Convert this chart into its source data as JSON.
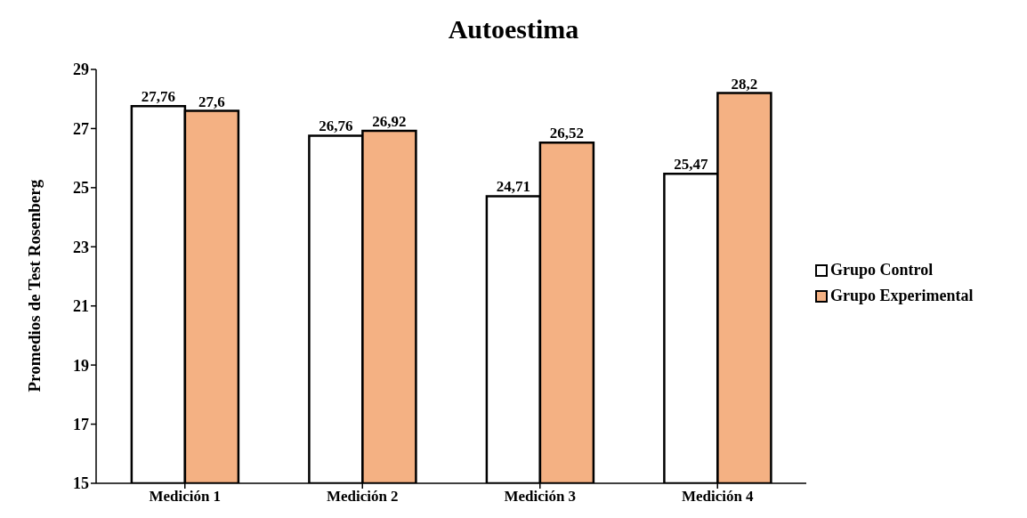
{
  "chart_data": {
    "type": "bar",
    "title": "Autoestima",
    "ylabel": "Promedios de Test Rosenberg",
    "categories": [
      "Medición 1",
      "Medición 2",
      "Medición 3",
      "Medición 4"
    ],
    "series": [
      {
        "name": "Grupo Control",
        "color": "#ffffff",
        "values": [
          27.76,
          26.76,
          24.71,
          25.47
        ],
        "value_labels": [
          "27,76",
          "26,76",
          "24,71",
          "25,47"
        ]
      },
      {
        "name": "Grupo Experimental",
        "color": "#f4b183",
        "values": [
          27.6,
          26.92,
          26.52,
          28.2
        ],
        "value_labels": [
          "27,6",
          "26,92",
          "26,52",
          "28,2"
        ]
      }
    ],
    "ylim": [
      15,
      29
    ],
    "yticks": [
      15,
      17,
      19,
      21,
      23,
      25,
      27,
      29
    ],
    "grid": false,
    "legend": "right"
  }
}
